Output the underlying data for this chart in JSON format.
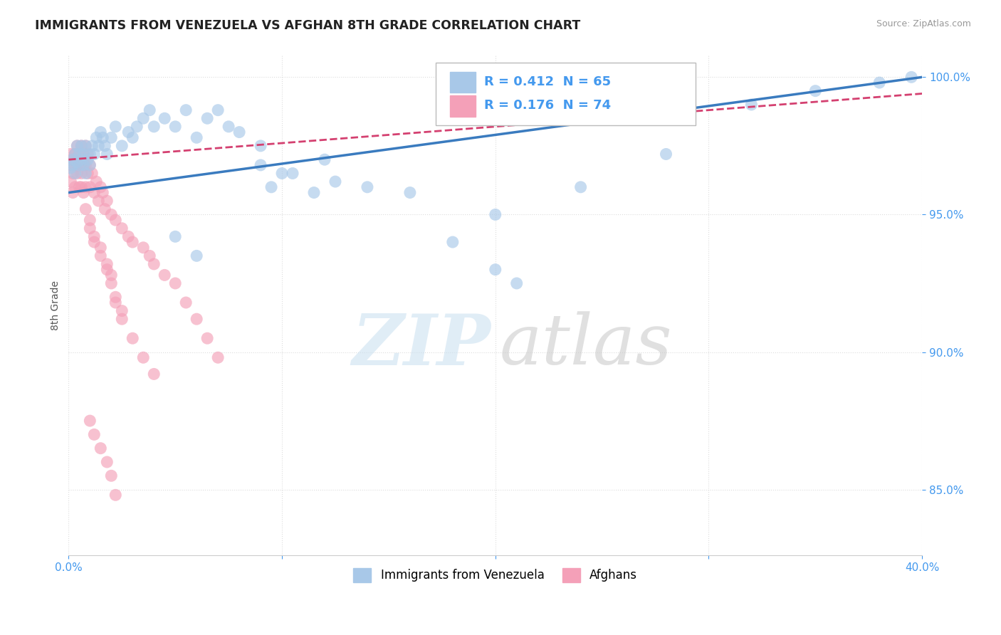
{
  "title": "IMMIGRANTS FROM VENEZUELA VS AFGHAN 8TH GRADE CORRELATION CHART",
  "source_text": "Source: ZipAtlas.com",
  "ylabel": "8th Grade",
  "xlim": [
    0.0,
    0.4
  ],
  "ylim": [
    0.826,
    1.008
  ],
  "blue_color": "#a8c8e8",
  "pink_color": "#f4a0b8",
  "blue_line_color": "#3a7bbf",
  "pink_line_color": "#d44070",
  "R_blue": 0.412,
  "N_blue": 65,
  "R_pink": 0.176,
  "N_pink": 74,
  "legend_label_blue": "Immigrants from Venezuela",
  "legend_label_pink": "Afghans",
  "watermark_zip": "ZIP",
  "watermark_atlas": "atlas",
  "background_color": "#ffffff",
  "grid_color": "#dddddd",
  "title_color": "#222222",
  "source_color": "#999999",
  "tick_color": "#4499ee",
  "ylabel_color": "#555555",
  "blue_line_intercept": 0.958,
  "blue_line_slope": 0.105,
  "pink_line_intercept": 0.97,
  "pink_line_slope": 0.06,
  "blue_scatter_x": [
    0.001,
    0.002,
    0.002,
    0.003,
    0.003,
    0.004,
    0.004,
    0.005,
    0.005,
    0.006,
    0.006,
    0.007,
    0.007,
    0.008,
    0.008,
    0.009,
    0.01,
    0.01,
    0.011,
    0.012,
    0.013,
    0.014,
    0.015,
    0.016,
    0.017,
    0.018,
    0.02,
    0.022,
    0.025,
    0.028,
    0.03,
    0.032,
    0.035,
    0.038,
    0.04,
    0.045,
    0.05,
    0.055,
    0.06,
    0.065,
    0.07,
    0.075,
    0.08,
    0.09,
    0.1,
    0.12,
    0.14,
    0.16,
    0.18,
    0.2,
    0.24,
    0.28,
    0.32,
    0.35,
    0.38,
    0.395,
    0.05,
    0.06,
    0.09,
    0.095,
    0.2,
    0.21,
    0.105,
    0.115,
    0.125
  ],
  "blue_scatter_y": [
    0.967,
    0.97,
    0.968,
    0.972,
    0.965,
    0.969,
    0.975,
    0.968,
    0.972,
    0.97,
    0.975,
    0.968,
    0.972,
    0.975,
    0.965,
    0.97,
    0.972,
    0.968,
    0.975,
    0.972,
    0.978,
    0.975,
    0.98,
    0.978,
    0.975,
    0.972,
    0.978,
    0.982,
    0.975,
    0.98,
    0.978,
    0.982,
    0.985,
    0.988,
    0.982,
    0.985,
    0.982,
    0.988,
    0.978,
    0.985,
    0.988,
    0.982,
    0.98,
    0.975,
    0.965,
    0.97,
    0.96,
    0.958,
    0.94,
    0.95,
    0.96,
    0.972,
    0.99,
    0.995,
    0.998,
    1.0,
    0.942,
    0.935,
    0.968,
    0.96,
    0.93,
    0.925,
    0.965,
    0.958,
    0.962
  ],
  "pink_scatter_x": [
    0.001,
    0.001,
    0.001,
    0.002,
    0.002,
    0.002,
    0.003,
    0.003,
    0.003,
    0.004,
    0.004,
    0.004,
    0.005,
    0.005,
    0.005,
    0.006,
    0.006,
    0.006,
    0.007,
    0.007,
    0.007,
    0.008,
    0.008,
    0.008,
    0.009,
    0.009,
    0.01,
    0.01,
    0.011,
    0.012,
    0.013,
    0.014,
    0.015,
    0.016,
    0.017,
    0.018,
    0.02,
    0.022,
    0.025,
    0.028,
    0.03,
    0.035,
    0.038,
    0.04,
    0.045,
    0.05,
    0.055,
    0.06,
    0.065,
    0.07,
    0.01,
    0.012,
    0.015,
    0.018,
    0.02,
    0.022,
    0.025,
    0.03,
    0.035,
    0.04,
    0.008,
    0.01,
    0.012,
    0.015,
    0.018,
    0.02,
    0.022,
    0.025,
    0.01,
    0.012,
    0.015,
    0.018,
    0.02,
    0.022
  ],
  "pink_scatter_y": [
    0.968,
    0.962,
    0.972,
    0.965,
    0.97,
    0.958,
    0.968,
    0.972,
    0.96,
    0.975,
    0.965,
    0.968,
    0.972,
    0.96,
    0.968,
    0.975,
    0.965,
    0.96,
    0.972,
    0.968,
    0.958,
    0.975,
    0.96,
    0.968,
    0.965,
    0.972,
    0.96,
    0.968,
    0.965,
    0.958,
    0.962,
    0.955,
    0.96,
    0.958,
    0.952,
    0.955,
    0.95,
    0.948,
    0.945,
    0.942,
    0.94,
    0.938,
    0.935,
    0.932,
    0.928,
    0.925,
    0.918,
    0.912,
    0.905,
    0.898,
    0.945,
    0.94,
    0.935,
    0.93,
    0.925,
    0.918,
    0.912,
    0.905,
    0.898,
    0.892,
    0.952,
    0.948,
    0.942,
    0.938,
    0.932,
    0.928,
    0.92,
    0.915,
    0.875,
    0.87,
    0.865,
    0.86,
    0.855,
    0.848
  ]
}
